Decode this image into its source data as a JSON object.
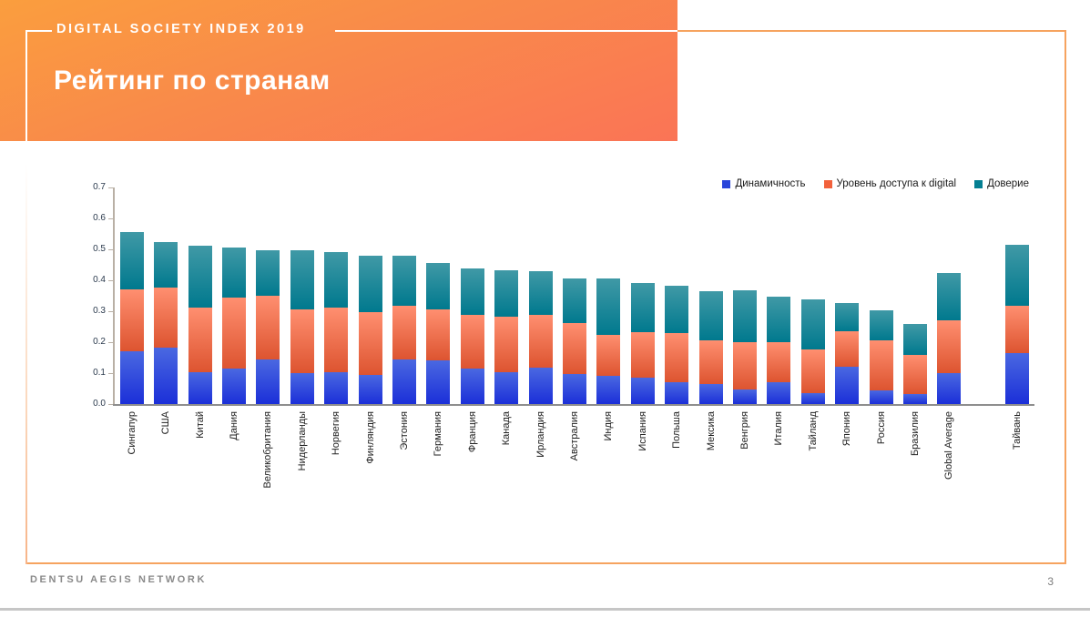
{
  "slide": {
    "kicker": "DIGITAL SOCIETY INDEX 2019",
    "title": "Рейтинг по странам",
    "footer_brand": "DENTSU AEGIS NETWORK",
    "page_number": "3"
  },
  "colors": {
    "header_gradient_start": "#FA9E3E",
    "header_gradient_end": "#FA7456",
    "frame_accent": "#F6A35F",
    "series_dynamism": "#2945DA",
    "series_access": "#F2613B",
    "series_trust": "#047F92",
    "axis_line": "#8E8E8E",
    "bottom_strip": "#C6C6C6"
  },
  "chart_data": {
    "type": "bar",
    "stacked": true,
    "legend_position": "top-right",
    "grid": false,
    "ylim": [
      0,
      0.7
    ],
    "yticks": [
      0.7,
      0.6,
      0.5,
      0.4,
      0.3,
      0.2,
      0.1,
      0.0
    ],
    "categories": [
      "Сингапур",
      "США",
      "Китай",
      "Дания",
      "Великобритания",
      "Нидерланды",
      "Норвегия",
      "Финляндия",
      "Эстония",
      "Германия",
      "Франция",
      "Канада",
      "Ирландия",
      "Австралия",
      "Индия",
      "Испания",
      "Польша",
      "Мексика",
      "Венгрия",
      "Италия",
      "Тайланд",
      "Япония",
      "Россия",
      "Бразилия",
      "Global Average",
      "",
      "Тайвань"
    ],
    "series": [
      {
        "key": "dynamism",
        "name": "Динамичность",
        "color": "#2945DA",
        "values": [
          0.171,
          0.181,
          0.102,
          0.115,
          0.145,
          0.1,
          0.103,
          0.094,
          0.144,
          0.142,
          0.115,
          0.103,
          0.119,
          0.098,
          0.091,
          0.085,
          0.071,
          0.066,
          0.047,
          0.07,
          0.035,
          0.12,
          0.045,
          0.033,
          0.1,
          null,
          0.166
        ]
      },
      {
        "key": "access",
        "name": "Уровень доступа к digital",
        "color": "#F2613B",
        "values": [
          0.201,
          0.195,
          0.21,
          0.228,
          0.206,
          0.205,
          0.209,
          0.202,
          0.173,
          0.166,
          0.173,
          0.179,
          0.17,
          0.166,
          0.133,
          0.147,
          0.158,
          0.142,
          0.153,
          0.13,
          0.142,
          0.114,
          0.163,
          0.126,
          0.172,
          null,
          0.153
        ]
      },
      {
        "key": "trust",
        "name": "Доверие",
        "color": "#047F92",
        "values": [
          0.186,
          0.147,
          0.199,
          0.162,
          0.148,
          0.19,
          0.179,
          0.183,
          0.161,
          0.149,
          0.15,
          0.151,
          0.141,
          0.143,
          0.182,
          0.158,
          0.153,
          0.16,
          0.168,
          0.147,
          0.161,
          0.09,
          0.098,
          0.1,
          0.152,
          null,
          0.196
        ]
      }
    ],
    "totals": [
      0.558,
      0.523,
      0.511,
      0.505,
      0.499,
      0.495,
      0.491,
      0.479,
      0.478,
      0.457,
      0.438,
      0.433,
      0.43,
      0.407,
      0.406,
      0.39,
      0.382,
      0.368,
      0.368,
      0.347,
      0.338,
      0.324,
      0.306,
      0.259,
      0.424,
      null,
      0.515
    ]
  }
}
